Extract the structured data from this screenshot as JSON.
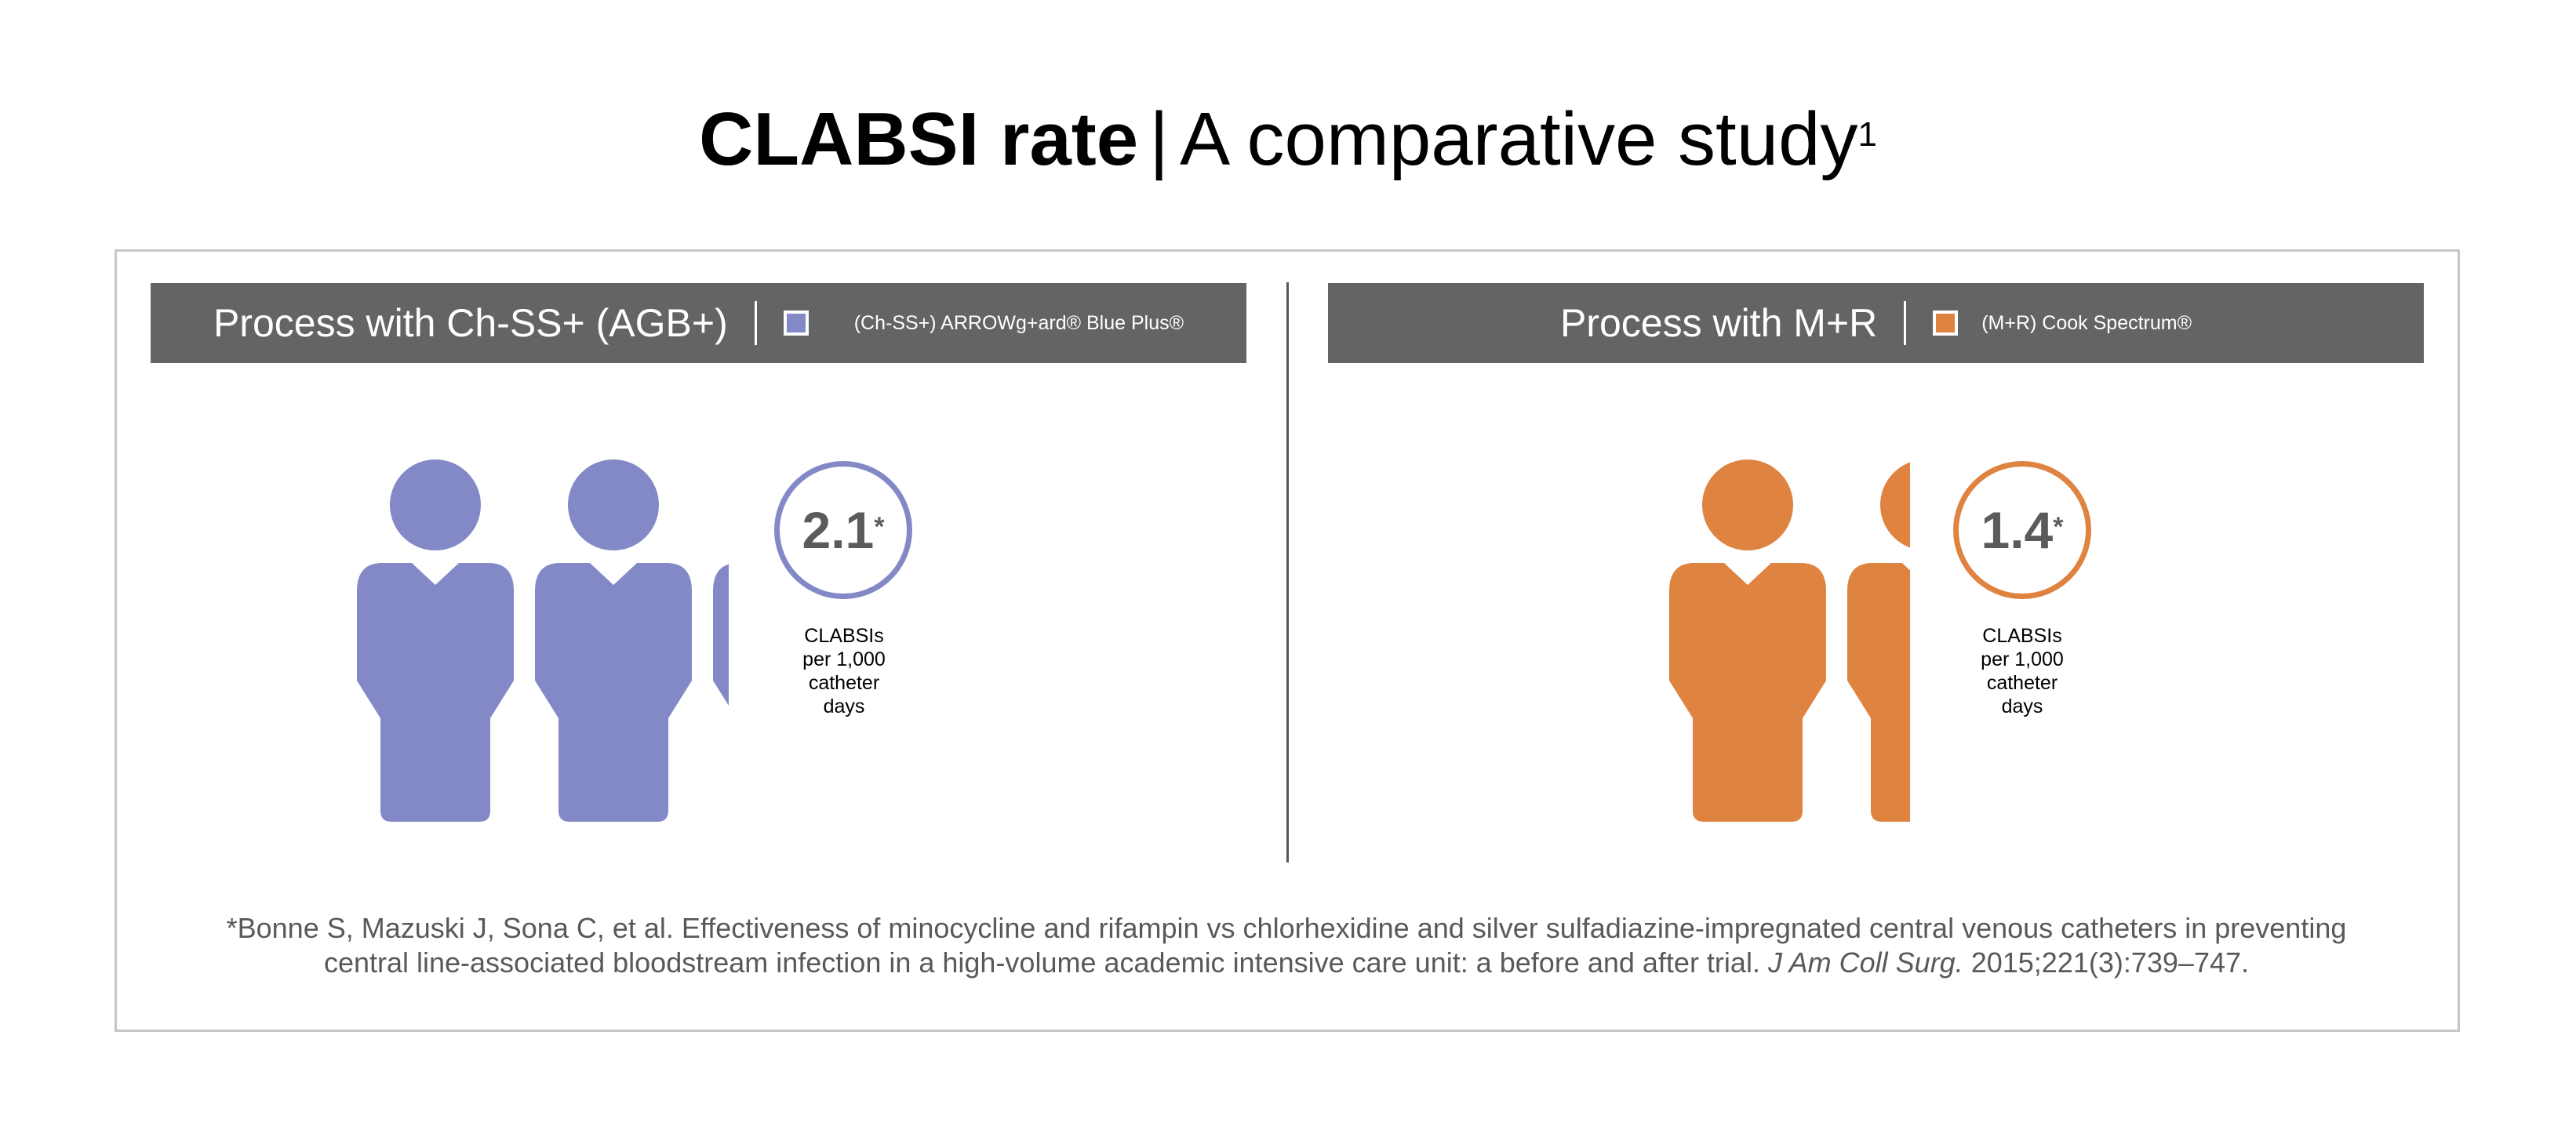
{
  "title": {
    "bold": "CLABSI rate",
    "separator": "|",
    "rest": "A comparative study",
    "sup": "1"
  },
  "panels": [
    {
      "process": "Process with Ch-SS+ (AGB+)",
      "legend_label": "(Ch-SS+) ARROWg+ard® Blue Plus®",
      "color": "#8389c6",
      "value_text": "2.1",
      "asterisk": "*",
      "caption": [
        "CLABSIs",
        "per 1,000",
        "catheter",
        "days"
      ]
    },
    {
      "process": "Process with M+R",
      "legend_label": "(M+R) Cook Spectrum®",
      "color": "#df8341",
      "value_text": "1.4",
      "asterisk": "*",
      "caption": [
        "CLABSIs",
        "per 1,000",
        "catheter",
        "days"
      ]
    }
  ],
  "chart_data": {
    "type": "bar",
    "categories": [
      "(Ch-SS+) ARROWg+ard® Blue Plus®",
      "(M+R) Cook Spectrum®"
    ],
    "values": [
      2.1,
      1.4
    ],
    "ylabel": "CLABSIs per 1,000 catheter days",
    "colors": [
      "#8389c6",
      "#df8341"
    ],
    "encoding": "pictogram",
    "units_per_figure": 1
  },
  "footnote": {
    "line1": "*Bonne S, Mazuski J, Sona C, et al. Effectiveness of minocycline and rifampin vs chlorhexidine and silver sulfadiazine-impregnated central venous catheters in preventing",
    "line2_prefix": "central line-associated bloodstream infection in a high-volume academic intensive care unit: a before and after trial.",
    "journal": "J Am Coll Surg.",
    "line2_suffix": "2015;221(3):739–747."
  }
}
